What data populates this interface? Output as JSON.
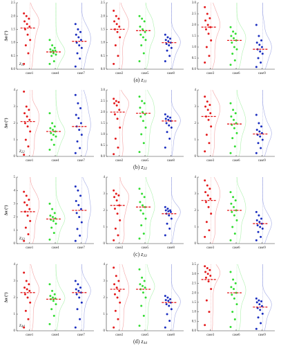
{
  "captions": [
    {
      "label": "(a)",
      "symbol": "z",
      "subscript": "11"
    },
    {
      "label": "(b)",
      "symbol": "z",
      "subscript": "22"
    },
    {
      "label": "(c)",
      "symbol": "z",
      "subscript": "33"
    },
    {
      "label": "(d)",
      "symbol": "z",
      "subscript": "44"
    }
  ],
  "chart_data": [
    {
      "type": "strip",
      "ylabel": "Δα (°)",
      "annotation": {
        "symbol": "z",
        "subscript": "11"
      },
      "mean_color": "#e31a1c",
      "ylim": [
        0,
        2.5
      ],
      "yticks": [
        {
          "value": 0,
          "label": "0.0"
        },
        0.5,
        {
          "value": 1,
          "label": "1.0"
        },
        1.5,
        {
          "value": 2,
          "label": "2.0"
        },
        2.5
      ],
      "series": [
        {
          "name": "case1",
          "color": "#e31a1c",
          "values": [
            2.1,
            2.0,
            1.9,
            1.8,
            1.7,
            1.6,
            1.5,
            1.3,
            1.1,
            0.9,
            0.6,
            0.2
          ],
          "mean": 1.55
        },
        {
          "name": "case4",
          "color": "#33dd33",
          "values": [
            1.1,
            0.9,
            0.8,
            0.75,
            0.7,
            0.7,
            0.65,
            0.6,
            0.55,
            0.5,
            0.3,
            0.2
          ],
          "mean": 0.65
        },
        {
          "name": "case7",
          "color": "#1a2dbf",
          "values": [
            1.7,
            1.5,
            1.4,
            1.3,
            1.2,
            1.1,
            1.0,
            0.9,
            0.8,
            0.6,
            0.4,
            0.1
          ],
          "mean": 1.05
        }
      ]
    },
    {
      "type": "strip",
      "mean_color": "#e31a1c",
      "ylim": [
        0,
        2.5
      ],
      "yticks": [
        {
          "value": 0,
          "label": "0.0"
        },
        0.5,
        {
          "value": 1,
          "label": "1.0"
        },
        1.5,
        {
          "value": 2,
          "label": "2.0"
        },
        2.5
      ],
      "series": [
        {
          "name": "case2",
          "color": "#e31a1c",
          "values": [
            2.2,
            2.0,
            1.9,
            1.8,
            1.7,
            1.6,
            1.5,
            1.4,
            1.2,
            0.9,
            0.5,
            0.2
          ],
          "mean": 1.5
        },
        {
          "name": "case5",
          "color": "#33dd33",
          "values": [
            2.0,
            1.9,
            1.8,
            1.6,
            1.5,
            1.4,
            1.3,
            1.2,
            1.1,
            0.9,
            0.6,
            0.3
          ],
          "mean": 1.45
        },
        {
          "name": "case8",
          "color": "#1a2dbf",
          "values": [
            1.3,
            1.2,
            1.15,
            1.1,
            1.05,
            1.0,
            0.95,
            0.9,
            0.8,
            0.7,
            0.5,
            0.3
          ],
          "mean": 1.0
        }
      ]
    },
    {
      "type": "strip",
      "mean_color": "#e31a1c",
      "ylim": [
        0,
        3
      ],
      "yticks": [
        {
          "value": 0,
          "label": "0.0"
        },
        0.5,
        {
          "value": 1,
          "label": "1.0"
        },
        1.5,
        {
          "value": 2,
          "label": "2.0"
        },
        2.5,
        {
          "value": 3,
          "label": "3.0"
        }
      ],
      "series": [
        {
          "name": "case3",
          "color": "#e31a1c",
          "values": [
            2.8,
            2.5,
            2.3,
            2.2,
            2.0,
            1.9,
            1.8,
            1.6,
            1.3,
            1.0,
            0.6,
            0.3
          ],
          "mean": 1.9
        },
        {
          "name": "case6",
          "color": "#33dd33",
          "values": [
            1.9,
            1.7,
            1.6,
            1.5,
            1.4,
            1.3,
            1.2,
            1.0,
            0.9,
            0.7,
            0.4,
            0.2
          ],
          "mean": 1.3
        },
        {
          "name": "case9",
          "color": "#1a2dbf",
          "values": [
            2.0,
            1.5,
            1.3,
            1.2,
            1.1,
            1.0,
            0.9,
            0.8,
            0.7,
            0.5,
            0.3,
            0.1
          ],
          "mean": 0.9
        }
      ]
    },
    {
      "type": "strip",
      "ylabel": "Δα (°)",
      "annotation": {
        "symbol": "z",
        "subscript": "22"
      },
      "mean_color": "#e31a1c",
      "ylim": [
        0,
        4
      ],
      "yticks": [
        0,
        1,
        2,
        3,
        4
      ],
      "series": [
        {
          "name": "case1",
          "color": "#e31a1c",
          "values": [
            3.9,
            3.0,
            2.8,
            2.6,
            2.4,
            2.2,
            2.0,
            1.8,
            1.5,
            1.0,
            0.6,
            0.1
          ],
          "mean": 2.1
        },
        {
          "name": "case4",
          "color": "#33dd33",
          "values": [
            2.6,
            2.0,
            1.8,
            1.7,
            1.6,
            1.5,
            1.4,
            1.3,
            1.2,
            1.0,
            0.7,
            0.4
          ],
          "mean": 1.5
        },
        {
          "name": "case7",
          "color": "#1a2dbf",
          "values": [
            3.7,
            3.2,
            2.9,
            2.5,
            2.3,
            2.0,
            1.8,
            1.6,
            1.3,
            0.9,
            0.5,
            0.2
          ],
          "mean": 1.8
        }
      ]
    },
    {
      "type": "strip",
      "mean_color": "#e31a1c",
      "ylim": [
        0,
        3
      ],
      "yticks": [
        {
          "value": 0,
          "label": "0.0"
        },
        0.5,
        {
          "value": 1,
          "label": "1.0"
        },
        1.5,
        {
          "value": 2,
          "label": "2.0"
        },
        2.5,
        {
          "value": 3,
          "label": "3.0"
        }
      ],
      "series": [
        {
          "name": "case2",
          "color": "#e31a1c",
          "values": [
            2.6,
            2.5,
            2.45,
            2.4,
            2.3,
            2.1,
            1.9,
            1.7,
            1.3,
            0.8,
            0.4,
            0.1
          ],
          "mean": 2.0
        },
        {
          "name": "case5",
          "color": "#33dd33",
          "values": [
            2.7,
            2.5,
            2.4,
            2.2,
            2.0,
            1.9,
            1.8,
            1.6,
            1.3,
            1.0,
            0.6,
            0.2
          ],
          "mean": 1.95
        },
        {
          "name": "case8",
          "color": "#1a2dbf",
          "values": [
            1.9,
            1.8,
            1.75,
            1.7,
            1.65,
            1.6,
            1.5,
            1.4,
            1.3,
            1.1,
            0.8,
            0.4
          ],
          "mean": 1.6
        }
      ]
    },
    {
      "type": "strip",
      "mean_color": "#e31a1c",
      "ylim": [
        0,
        4
      ],
      "yticks": [
        0,
        1,
        2,
        3,
        4
      ],
      "series": [
        {
          "name": "case3",
          "color": "#e31a1c",
          "values": [
            3.6,
            3.3,
            3.1,
            3.0,
            2.8,
            2.6,
            2.4,
            2.2,
            1.8,
            1.3,
            0.8,
            0.3
          ],
          "mean": 2.4
        },
        {
          "name": "case6",
          "color": "#33dd33",
          "values": [
            3.2,
            2.8,
            2.6,
            2.4,
            2.2,
            2.0,
            1.9,
            1.7,
            1.4,
            1.1,
            0.6,
            0.2
          ],
          "mean": 1.95
        },
        {
          "name": "case9",
          "color": "#1a2dbf",
          "values": [
            2.5,
            2.0,
            1.8,
            1.6,
            1.5,
            1.4,
            1.3,
            1.2,
            1.0,
            0.8,
            0.5,
            0.2
          ],
          "mean": 1.35
        }
      ]
    },
    {
      "type": "strip",
      "ylabel": "Δα (°)",
      "annotation": {
        "symbol": "z",
        "subscript": "33"
      },
      "mean_color": "#e31a1c",
      "ylim": [
        0,
        5
      ],
      "yticks": [
        0,
        1,
        2,
        3,
        4,
        5
      ],
      "series": [
        {
          "name": "case1",
          "color": "#e31a1c",
          "values": [
            3.9,
            3.6,
            3.3,
            3.1,
            2.9,
            2.6,
            2.4,
            2.1,
            1.7,
            1.2,
            0.7,
            0.2
          ],
          "mean": 2.4
        },
        {
          "name": "case4",
          "color": "#33dd33",
          "values": [
            3.0,
            2.6,
            2.3,
            2.1,
            2.0,
            1.9,
            1.8,
            1.7,
            1.5,
            1.2,
            0.8,
            0.3
          ],
          "mean": 1.85
        },
        {
          "name": "case7",
          "color": "#1a2dbf",
          "values": [
            4.3,
            4.0,
            3.6,
            3.2,
            2.9,
            2.6,
            2.3,
            2.0,
            1.6,
            1.1,
            0.6,
            0.2
          ],
          "mean": 2.5
        }
      ]
    },
    {
      "type": "strip",
      "mean_color": "#e31a1c",
      "ylim": [
        0,
        4
      ],
      "yticks": [
        0,
        1,
        2,
        3,
        4
      ],
      "series": [
        {
          "name": "case2",
          "color": "#e31a1c",
          "values": [
            3.2,
            3.0,
            2.9,
            2.8,
            2.6,
            2.3,
            2.1,
            1.8,
            1.4,
            0.9,
            0.5,
            0.2
          ],
          "mean": 2.3
        },
        {
          "name": "case5",
          "color": "#33dd33",
          "values": [
            3.3,
            3.0,
            2.8,
            2.5,
            2.3,
            2.2,
            2.0,
            1.8,
            1.5,
            1.1,
            0.6,
            0.3
          ],
          "mean": 2.2
        },
        {
          "name": "case8",
          "color": "#1a2dbf",
          "values": [
            2.2,
            2.1,
            2.0,
            2.0,
            1.95,
            1.9,
            1.8,
            1.7,
            1.5,
            1.2,
            0.9,
            0.5
          ],
          "mean": 1.8
        }
      ]
    },
    {
      "type": "strip",
      "mean_color": "#e31a1c",
      "ylim": [
        0,
        4
      ],
      "yticks": [
        0,
        1,
        2,
        3,
        4
      ],
      "series": [
        {
          "name": "case3",
          "color": "#e31a1c",
          "values": [
            3.8,
            3.5,
            3.3,
            3.1,
            2.9,
            2.7,
            2.5,
            2.2,
            1.8,
            1.3,
            0.8,
            0.4
          ],
          "mean": 2.6
        },
        {
          "name": "case6",
          "color": "#33dd33",
          "values": [
            3.1,
            2.8,
            2.6,
            2.4,
            2.2,
            2.0,
            1.9,
            1.7,
            1.4,
            1.0,
            0.6,
            0.2
          ],
          "mean": 2.0
        },
        {
          "name": "case9",
          "color": "#1a2dbf",
          "values": [
            1.9,
            1.7,
            1.5,
            1.4,
            1.3,
            1.2,
            1.1,
            1.0,
            0.9,
            0.7,
            0.4,
            0.2
          ],
          "mean": 1.2
        }
      ]
    },
    {
      "type": "strip",
      "ylabel": "Δα (°)",
      "annotation": {
        "symbol": "z",
        "subscript": "44"
      },
      "mean_color": "#e31a1c",
      "ylim": [
        0,
        4
      ],
      "yticks": [
        0,
        1,
        2,
        3,
        4
      ],
      "series": [
        {
          "name": "case1",
          "color": "#e31a1c",
          "values": [
            3.5,
            3.0,
            2.8,
            2.6,
            2.5,
            2.4,
            2.2,
            2.0,
            1.7,
            1.2,
            0.7,
            0.2
          ],
          "mean": 2.3
        },
        {
          "name": "case4",
          "color": "#33dd33",
          "values": [
            2.8,
            2.4,
            2.2,
            2.1,
            2.0,
            1.95,
            1.9,
            1.8,
            1.6,
            1.3,
            0.9,
            0.4
          ],
          "mean": 1.9
        },
        {
          "name": "case7",
          "color": "#1a2dbf",
          "values": [
            3.0,
            2.8,
            2.6,
            2.5,
            2.4,
            2.3,
            2.2,
            2.0,
            1.7,
            1.3,
            0.7,
            0.2
          ],
          "mean": 2.3
        }
      ]
    },
    {
      "type": "strip",
      "mean_color": "#e31a1c",
      "ylim": [
        0,
        4
      ],
      "yticks": [
        0,
        1,
        2,
        3,
        4
      ],
      "series": [
        {
          "name": "case2",
          "color": "#e31a1c",
          "values": [
            3.8,
            3.3,
            3.0,
            2.8,
            2.6,
            2.4,
            2.2,
            2.0,
            1.7,
            1.2,
            0.7,
            0.2
          ],
          "mean": 2.5
        },
        {
          "name": "case5",
          "color": "#33dd33",
          "values": [
            3.7,
            3.2,
            3.0,
            2.8,
            2.7,
            2.6,
            2.5,
            2.3,
            2.0,
            1.5,
            0.9,
            0.3
          ],
          "mean": 2.5
        },
        {
          "name": "case8",
          "color": "#1a2dbf",
          "values": [
            2.1,
            2.0,
            1.9,
            1.85,
            1.8,
            1.7,
            1.6,
            1.5,
            1.3,
            1.0,
            0.6,
            0.2
          ],
          "mean": 1.7
        }
      ]
    },
    {
      "type": "strip",
      "mean_color": "#e31a1c",
      "ylim": [
        0,
        3.5
      ],
      "yticks": [
        {
          "value": 0,
          "label": "0.0"
        },
        0.5,
        {
          "value": 1,
          "label": "1.0"
        },
        1.5,
        {
          "value": 2,
          "label": "2.0"
        },
        2.5,
        {
          "value": 3,
          "label": "3.0"
        },
        3.5
      ],
      "series": [
        {
          "name": "case3",
          "color": "#e31a1c",
          "values": [
            3.4,
            3.3,
            3.2,
            3.1,
            3.0,
            2.9,
            2.8,
            2.6,
            2.2,
            1.6,
            1.0,
            0.3
          ],
          "mean": 2.7
        },
        {
          "name": "case6",
          "color": "#33dd33",
          "values": [
            3.1,
            2.7,
            2.5,
            2.3,
            2.2,
            2.0,
            1.9,
            1.7,
            1.4,
            1.0,
            0.6,
            0.2
          ],
          "mean": 2.0
        },
        {
          "name": "case9",
          "color": "#1a2dbf",
          "values": [
            1.7,
            1.6,
            1.55,
            1.5,
            1.4,
            1.3,
            1.2,
            1.1,
            0.9,
            0.7,
            0.4,
            0.1
          ],
          "mean": 1.25
        }
      ]
    }
  ]
}
